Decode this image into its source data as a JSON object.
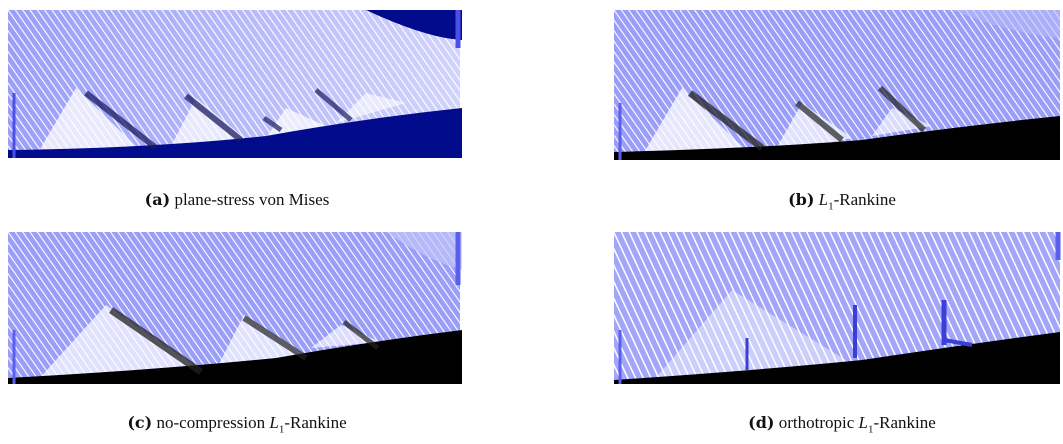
{
  "figure": {
    "panels": [
      {
        "id": "a",
        "label": "(a)",
        "caption_text": "plane-stress von Mises",
        "caption_math": "",
        "caption_sub": "",
        "caption_suffix": "",
        "solid_color": "#020b8c"
      },
      {
        "id": "b",
        "label": "(b)",
        "caption_text": "",
        "caption_math": "L",
        "caption_sub": "1",
        "caption_suffix": "-Rankine",
        "solid_color": "#000000"
      },
      {
        "id": "c",
        "label": "(c)",
        "caption_text": "no-compression ",
        "caption_math": "L",
        "caption_sub": "1",
        "caption_suffix": "-Rankine",
        "solid_color": "#000000"
      },
      {
        "id": "d",
        "label": "(d)",
        "caption_text": "orthotropic ",
        "caption_math": "L",
        "caption_sub": "1",
        "caption_suffix": "-Rankine",
        "solid_color": "#000000"
      }
    ],
    "colors": {
      "fiber": "#7b7ff5",
      "fiber_dark": "#3a3fd8",
      "background": "#ffffff"
    }
  }
}
